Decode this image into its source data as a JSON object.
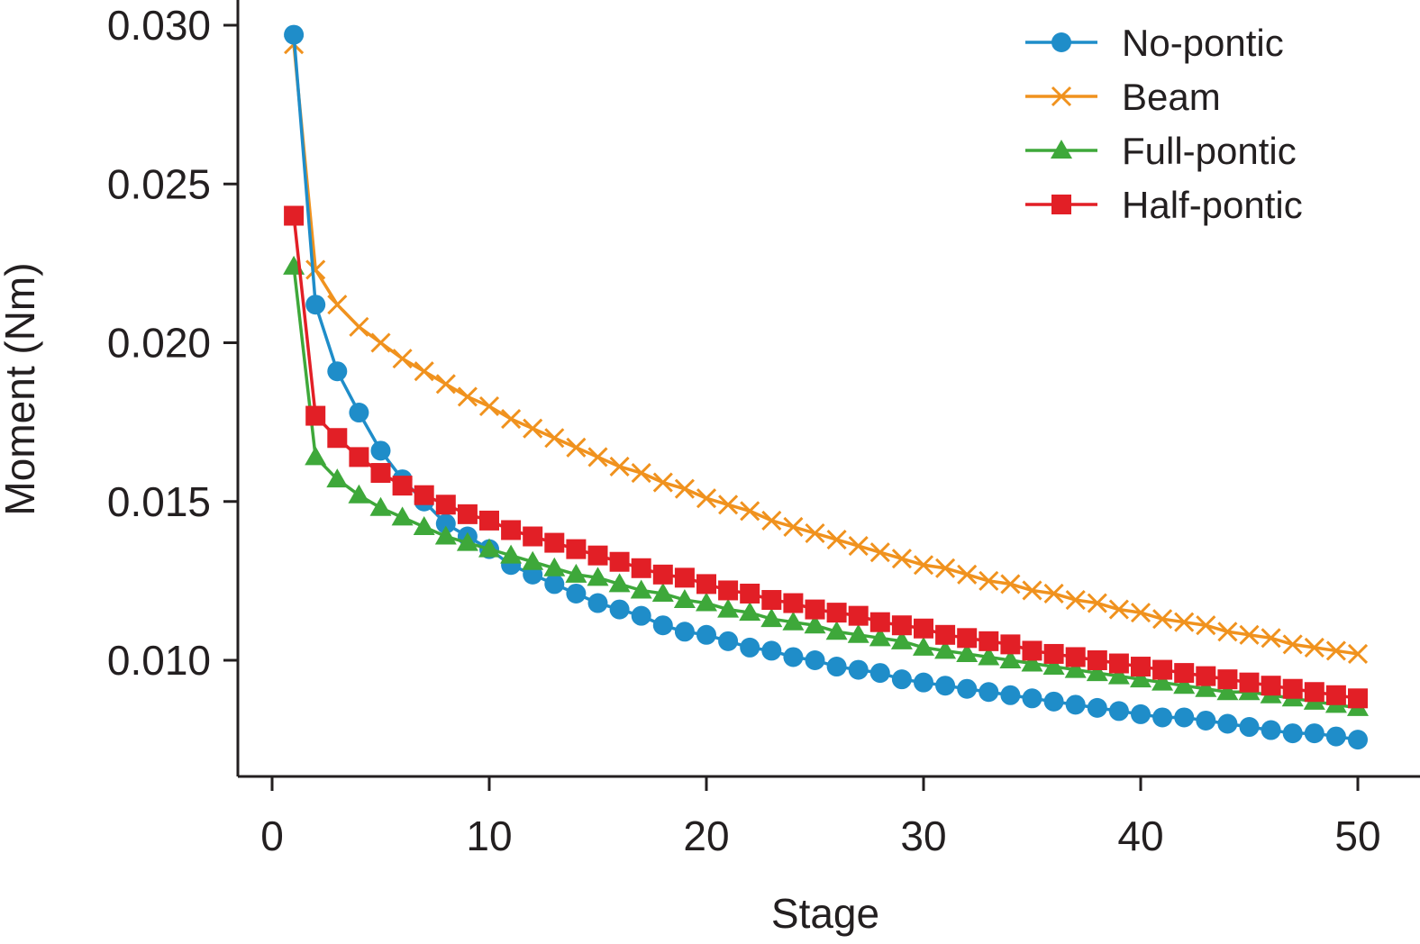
{
  "chart_data": {
    "type": "line",
    "title": "",
    "xlabel": "Stage",
    "ylabel": "Moment (Nm)",
    "xlim": [
      -1.5,
      52
    ],
    "ylim": [
      0.0066,
      0.0306
    ],
    "xticks": [
      0,
      10,
      20,
      30,
      40,
      50
    ],
    "yticks": [
      0.01,
      0.015,
      0.02,
      0.025,
      0.03
    ],
    "xtick_labels": [
      "0",
      "10",
      "20",
      "30",
      "40",
      "50"
    ],
    "ytick_labels": [
      "0.010",
      "0.015",
      "0.020",
      "0.025",
      "0.030"
    ],
    "legend_position": "top-right",
    "grid": false,
    "x": [
      1,
      2,
      3,
      4,
      5,
      6,
      7,
      8,
      9,
      10,
      11,
      12,
      13,
      14,
      15,
      16,
      17,
      18,
      19,
      20,
      21,
      22,
      23,
      24,
      25,
      26,
      27,
      28,
      29,
      30,
      31,
      32,
      33,
      34,
      35,
      36,
      37,
      38,
      39,
      40,
      41,
      42,
      43,
      44,
      45,
      46,
      47,
      48,
      49,
      50
    ],
    "series": [
      {
        "name": "No-pontic",
        "color": "#1f8dc9",
        "marker": "circle",
        "values": [
          0.0297,
          0.0212,
          0.0191,
          0.0178,
          0.0166,
          0.0157,
          0.015,
          0.0143,
          0.0139,
          0.0135,
          0.013,
          0.0127,
          0.0124,
          0.0121,
          0.0118,
          0.0116,
          0.0114,
          0.0111,
          0.0109,
          0.0108,
          0.0106,
          0.0104,
          0.0103,
          0.0101,
          0.01,
          0.0098,
          0.0097,
          0.0096,
          0.0094,
          0.0093,
          0.0092,
          0.0091,
          0.009,
          0.0089,
          0.0088,
          0.0087,
          0.0086,
          0.0085,
          0.0084,
          0.0083,
          0.0082,
          0.0082,
          0.0081,
          0.008,
          0.0079,
          0.0078,
          0.0077,
          0.0077,
          0.0076,
          0.0075
        ]
      },
      {
        "name": "Beam",
        "color": "#f0921e",
        "marker": "x",
        "values": [
          0.0294,
          0.0223,
          0.0212,
          0.0205,
          0.02,
          0.0195,
          0.0191,
          0.0187,
          0.0183,
          0.018,
          0.0176,
          0.0173,
          0.017,
          0.0167,
          0.0164,
          0.0161,
          0.0159,
          0.0156,
          0.0154,
          0.0151,
          0.0149,
          0.0147,
          0.0144,
          0.0142,
          0.014,
          0.0138,
          0.0136,
          0.0134,
          0.0132,
          0.013,
          0.0129,
          0.0127,
          0.0125,
          0.0124,
          0.0122,
          0.0121,
          0.0119,
          0.0118,
          0.0116,
          0.0115,
          0.0113,
          0.0112,
          0.0111,
          0.0109,
          0.0108,
          0.0107,
          0.0105,
          0.0104,
          0.0103,
          0.0102
        ]
      },
      {
        "name": "Full-pontic",
        "color": "#3ea83a",
        "marker": "triangle",
        "values": [
          0.0224,
          0.0164,
          0.0157,
          0.0152,
          0.0148,
          0.0145,
          0.0142,
          0.0139,
          0.0137,
          0.0135,
          0.0133,
          0.0131,
          0.0129,
          0.0127,
          0.0126,
          0.0124,
          0.0122,
          0.0121,
          0.0119,
          0.0118,
          0.0116,
          0.0115,
          0.0113,
          0.0112,
          0.0111,
          0.0109,
          0.0108,
          0.0107,
          0.0106,
          0.0104,
          0.0103,
          0.0102,
          0.0101,
          0.01,
          0.0099,
          0.0098,
          0.0097,
          0.0096,
          0.0095,
          0.0094,
          0.0093,
          0.0092,
          0.0091,
          0.009,
          0.009,
          0.0089,
          0.0088,
          0.0087,
          0.0086,
          0.0085
        ]
      },
      {
        "name": "Half-pontic",
        "color": "#e21f26",
        "marker": "square",
        "values": [
          0.024,
          0.0177,
          0.017,
          0.0164,
          0.0159,
          0.0155,
          0.0152,
          0.0149,
          0.0146,
          0.0144,
          0.0141,
          0.0139,
          0.0137,
          0.0135,
          0.0133,
          0.0131,
          0.0129,
          0.0127,
          0.0126,
          0.0124,
          0.0122,
          0.0121,
          0.0119,
          0.0118,
          0.0116,
          0.0115,
          0.0114,
          0.0112,
          0.0111,
          0.011,
          0.0108,
          0.0107,
          0.0106,
          0.0105,
          0.0103,
          0.0102,
          0.0101,
          0.01,
          0.0099,
          0.0098,
          0.0097,
          0.0096,
          0.0095,
          0.0094,
          0.0093,
          0.0092,
          0.0091,
          0.009,
          0.0089,
          0.0088
        ]
      }
    ]
  }
}
